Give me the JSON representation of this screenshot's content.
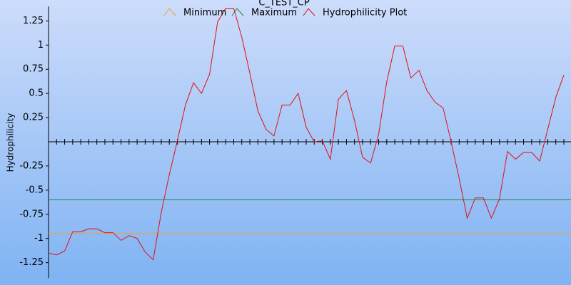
{
  "chart_data": {
    "type": "line",
    "title": "C_TEST_CP",
    "y_label": "Hydrophilicity",
    "ylim": [
      -1.4,
      1.4
    ],
    "yticks": [
      1.25,
      1,
      0.75,
      0.5,
      0.25,
      -0.25,
      -0.5,
      -0.75,
      -1,
      -1.25
    ],
    "series": [
      {
        "name": "Minimum",
        "color": "#f0a030",
        "value": -0.95
      },
      {
        "name": "Maximum",
        "color": "#208040",
        "value": -0.6
      },
      {
        "name": "Hydrophilicity Plot",
        "color": "#e01010",
        "values": [
          -1.15,
          -1.17,
          -1.13,
          -0.93,
          -0.93,
          -0.9,
          -0.9,
          -0.94,
          -0.94,
          -1.02,
          -0.97,
          -1.0,
          -1.14,
          -1.22,
          -0.73,
          -0.34,
          0.01,
          0.38,
          0.61,
          0.5,
          0.7,
          1.24,
          1.38,
          1.38,
          1.08,
          0.71,
          0.32,
          0.13,
          0.06,
          0.38,
          0.38,
          0.5,
          0.15,
          0.0,
          0.01,
          -0.18,
          0.44,
          0.53,
          0.22,
          -0.16,
          -0.22,
          0.08,
          0.62,
          0.99,
          0.99,
          0.66,
          0.74,
          0.53,
          0.41,
          0.35,
          0.0,
          -0.38,
          -0.79,
          -0.58,
          -0.58,
          -0.79,
          -0.59,
          -0.1,
          -0.18,
          -0.11,
          -0.11,
          -0.2,
          0.13,
          0.46,
          0.69
        ]
      }
    ]
  }
}
